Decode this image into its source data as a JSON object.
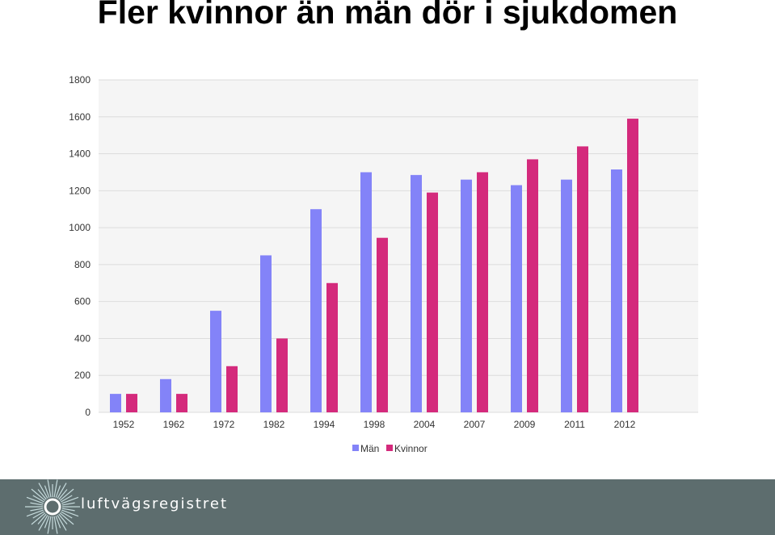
{
  "slide": {
    "title": "Fler kvinnor än män dör i sjukdomen",
    "logo_text": "luftvägsregistret"
  },
  "chart_data": {
    "type": "bar",
    "title": "",
    "xlabel": "",
    "ylabel": "",
    "categories": [
      "1952",
      "1962",
      "1972",
      "1982",
      "1994",
      "1998",
      "2004",
      "2007",
      "2009",
      "2011",
      "2012"
    ],
    "series": [
      {
        "name": "Män",
        "color": "#8383f8",
        "values": [
          100,
          180,
          550,
          850,
          1100,
          1300,
          1285,
          1260,
          1230,
          1260,
          1315
        ]
      },
      {
        "name": "Kvinnor",
        "color": "#d42a7c",
        "values": [
          100,
          100,
          250,
          400,
          700,
          945,
          1190,
          1300,
          1370,
          1440,
          1590
        ]
      }
    ],
    "ylim": [
      0,
      1800
    ],
    "yticks": [
      "0",
      "200",
      "400",
      "600",
      "800",
      "1000",
      "1200",
      "1400",
      "1600",
      "1800"
    ],
    "grid": true,
    "legend": "bottom"
  }
}
